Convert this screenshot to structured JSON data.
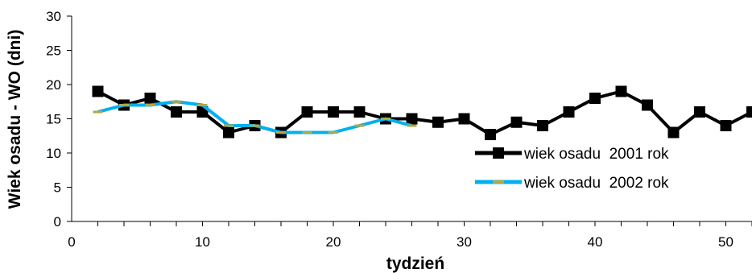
{
  "chart_data": {
    "type": "line",
    "title": "",
    "xlabel": "tydzień",
    "ylabel": "Wiek osadu - WO (dni)",
    "xlim": [
      0,
      52
    ],
    "ylim": [
      0,
      30
    ],
    "x_ticks": [
      "0",
      "10",
      "20",
      "30",
      "40",
      "50"
    ],
    "y_ticks": [
      "0",
      "5",
      "10",
      "15",
      "20",
      "25",
      "30"
    ],
    "grid": false,
    "legend": "right",
    "series": [
      {
        "name": "wiek osadu  2001 rok",
        "color": "#000000",
        "marker": "square",
        "x": [
          2,
          4,
          6,
          8,
          10,
          12,
          14,
          16,
          18,
          20,
          22,
          24,
          26,
          28,
          30,
          32,
          34,
          36,
          38,
          40,
          42,
          44,
          46,
          48,
          50,
          52
        ],
        "y": [
          19,
          17,
          18,
          16,
          16,
          13,
          14,
          13,
          16,
          16,
          16,
          15,
          15,
          14.5,
          15,
          12.7,
          14.5,
          14,
          16,
          18,
          19,
          17,
          13,
          16,
          14,
          16
        ]
      },
      {
        "name": "wiek osadu  2002 rok",
        "color": "#00b0f0",
        "marker_color": "#b5a642",
        "marker": "dash",
        "x": [
          2,
          4,
          6,
          8,
          10,
          12,
          14,
          16,
          18,
          20,
          22,
          24,
          26
        ],
        "y": [
          16,
          17,
          17,
          17.5,
          17,
          14,
          14,
          13,
          13,
          13,
          14,
          15,
          14
        ]
      }
    ]
  }
}
